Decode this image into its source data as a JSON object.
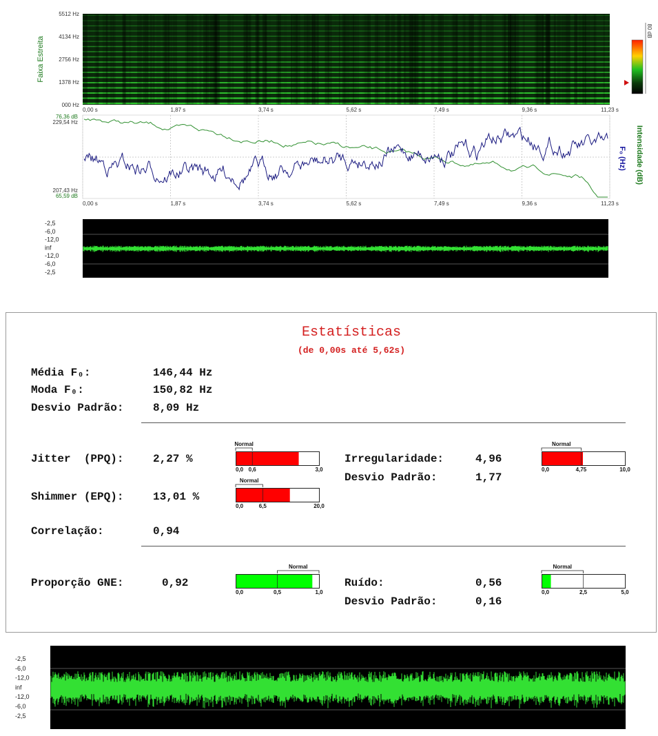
{
  "spectrogram": {
    "axis_label": "Faixa Estreita",
    "y_labels": [
      "5512 Hz",
      "4134 Hz",
      "2756 Hz",
      "1378 Hz",
      "000 Hz"
    ],
    "x_labels": [
      "0,00 s",
      "1,87 s",
      "3,74 s",
      "5,62 s",
      "7,49 s",
      "9,36 s",
      "11,23 s"
    ],
    "colorbar_label": "80 dB"
  },
  "pitch_panel": {
    "top_db": "76,36 dB",
    "top_hz": "229,54 Hz",
    "bottom_hz": "207,43 Hz",
    "bottom_db": "65,59 dB",
    "f0_label": "F₀ (Hz)",
    "intensity_label": "Intensidade (dB)",
    "x_labels": [
      "0,00 s",
      "1,87 s",
      "3,74 s",
      "5,62 s",
      "7,49 s",
      "9,36 s",
      "11,23 s"
    ]
  },
  "waveform_small": {
    "labels": [
      "-2,5",
      "-6,0",
      "-12,0",
      "inf",
      "-12,0",
      "-6,0",
      "-2,5"
    ]
  },
  "statistics": {
    "title": "Estatísticas",
    "subtitle": "(de 0,00s até 5,62s)",
    "f0": [
      {
        "label": "Média F₀:",
        "value": "146,44 Hz"
      },
      {
        "label": "Moda F₀:",
        "value": "150,82 Hz"
      },
      {
        "label": "Desvio Padrão:",
        "value": "8,09 Hz"
      }
    ],
    "jitter": {
      "label": "Jitter  (PPQ):",
      "value": "2,27 %",
      "gauge": {
        "caption": "Normal",
        "ticks": [
          "0,0",
          "0,6",
          "3,0"
        ],
        "normal_side": "low",
        "color": "#ff0000"
      }
    },
    "shimmer": {
      "label": "Shimmer (EPQ):",
      "value": "13,01 %",
      "gauge": {
        "caption": "Normal",
        "ticks": [
          "0,0",
          "6,5",
          "20,0"
        ],
        "normal_side": "low",
        "color": "#ff0000"
      }
    },
    "correlation": {
      "label": "Correlação:",
      "value": "0,94"
    },
    "irregularity": {
      "label": "Irregularidade:",
      "value": "4,96",
      "std_label": "Desvio Padrão:",
      "std_value": "1,77",
      "gauge": {
        "caption": "Normal",
        "ticks": [
          "0,0",
          "4,75",
          "10,0"
        ],
        "normal_side": "low",
        "color": "#ff0000"
      }
    },
    "gne": {
      "label": "Proporção GNE:",
      "value": "0,92",
      "gauge": {
        "caption": "Normal",
        "ticks": [
          "0,0",
          "0,5",
          "1,0"
        ],
        "normal_side": "high",
        "color": "#00ff00"
      }
    },
    "noise": {
      "label": "Ruído:",
      "value": "0,56",
      "std_label": "Desvio Padrão:",
      "std_value": "0,16",
      "gauge": {
        "caption": "Normal",
        "ticks": [
          "0,0",
          "2,5",
          "5,0"
        ],
        "normal_side": "low",
        "color": "#00ff00"
      }
    }
  },
  "waveform_large": {
    "labels": [
      "-2,5",
      "-6,0",
      "-12,0",
      "inf",
      "-12,0",
      "-6,0",
      "-2,5"
    ]
  }
}
